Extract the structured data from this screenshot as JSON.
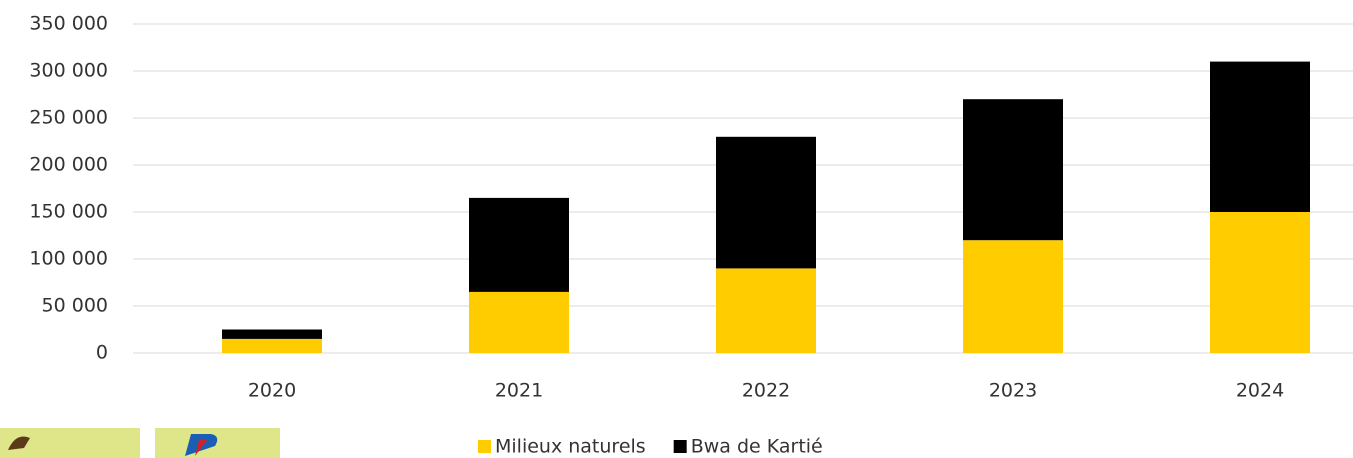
{
  "chart_data": {
    "type": "stacked_bar",
    "categories": [
      "2020",
      "2021",
      "2022",
      "2023",
      "2024"
    ],
    "series": [
      {
        "name": "Milieux naturels",
        "color": "#ffcc00",
        "values": [
          15000,
          65000,
          90000,
          120000,
          150000
        ]
      },
      {
        "name": "Bwa de Kartié",
        "color": "#000000",
        "values": [
          10000,
          100000,
          140000,
          150000,
          160000
        ]
      }
    ],
    "ylim": [
      0,
      350000
    ],
    "yticks": [
      0,
      {
        "value": 50000,
        "label": "50 000"
      },
      {
        "value": 100000,
        "label": "100 000"
      },
      {
        "value": 150000,
        "label": "150 000"
      },
      {
        "value": 200000,
        "label": "200 000"
      },
      {
        "value": 250000,
        "label": "250 000"
      },
      {
        "value": 300000,
        "label": "300 000"
      },
      {
        "value": 350000,
        "label": "350 000"
      }
    ],
    "grid": true,
    "legend": "bottom"
  }
}
